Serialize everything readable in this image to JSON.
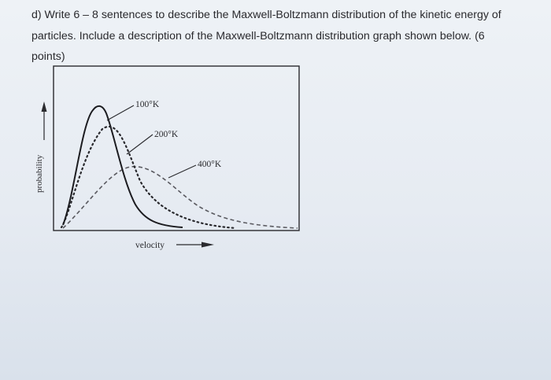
{
  "question": {
    "line1": "d) Write 6 – 8 sentences to describe the Maxwell-Boltzmann distribution of the kinetic energy of",
    "line2": "particles. Include a description of the Maxwell-Boltzmann distribution graph shown below. (6",
    "line3": "points)"
  },
  "graph": {
    "x_axis_label": "velocity",
    "y_axis_label": "probability",
    "curves": [
      {
        "label": "100°K",
        "style": "solid"
      },
      {
        "label": "200°K",
        "style": "dotted"
      },
      {
        "label": "400°K",
        "style": "dashed"
      }
    ]
  }
}
